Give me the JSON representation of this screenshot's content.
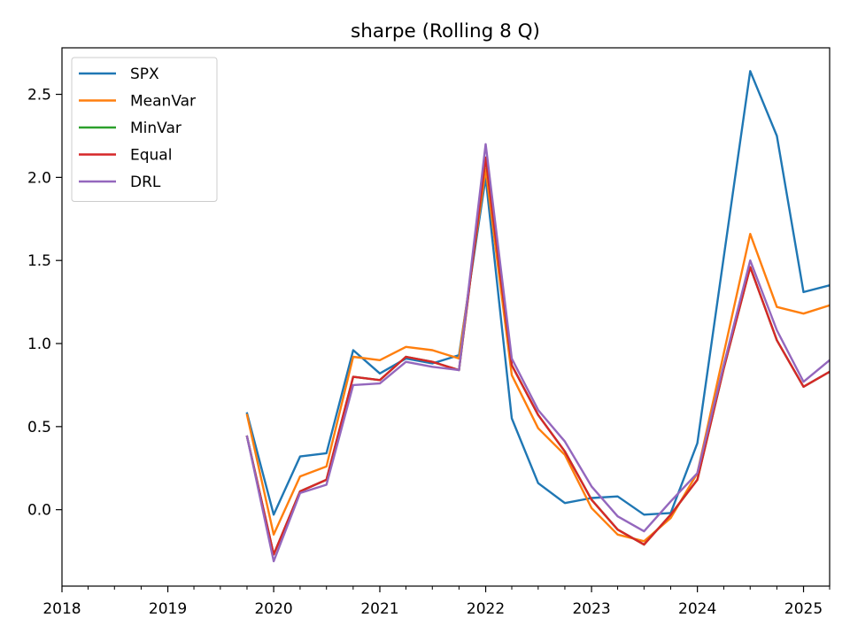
{
  "chart_data": {
    "type": "line",
    "title": "sharpe (Rolling 8 Q)",
    "xlabel": "",
    "ylabel": "",
    "x_range": [
      "2018-01-01",
      "2025-04-01"
    ],
    "ylim": [
      -0.46,
      2.78
    ],
    "x_ticks": [
      {
        "date": "2018-01-01",
        "label": "2018"
      },
      {
        "date": "2019-01-01",
        "label": "2019"
      },
      {
        "date": "2020-01-01",
        "label": "2020"
      },
      {
        "date": "2021-01-01",
        "label": "2021"
      },
      {
        "date": "2022-01-01",
        "label": "2022"
      },
      {
        "date": "2023-01-01",
        "label": "2023"
      },
      {
        "date": "2024-01-01",
        "label": "2024"
      },
      {
        "date": "2025-01-01",
        "label": "2025"
      }
    ],
    "y_ticks": [
      {
        "value": 0.0,
        "label": "0.0"
      },
      {
        "value": 0.5,
        "label": "0.5"
      },
      {
        "value": 1.0,
        "label": "1.0"
      },
      {
        "value": 1.5,
        "label": "1.5"
      },
      {
        "value": 2.0,
        "label": "2.0"
      },
      {
        "value": 2.5,
        "label": "2.5"
      }
    ],
    "grid": false,
    "legend_position": "top-left",
    "x": [
      "2019-10-01",
      "2020-01-01",
      "2020-04-01",
      "2020-07-01",
      "2020-10-01",
      "2021-01-01",
      "2021-04-01",
      "2021-07-01",
      "2021-10-01",
      "2022-01-01",
      "2022-04-01",
      "2022-07-01",
      "2022-10-01",
      "2023-01-01",
      "2023-04-01",
      "2023-07-01",
      "2023-10-01",
      "2024-01-01",
      "2024-04-01",
      "2024-07-01",
      "2024-10-01",
      "2025-01-01",
      "2025-04-01"
    ],
    "series": [
      {
        "name": "SPX",
        "color": "#1f77b4",
        "values": [
          0.58,
          -0.03,
          0.32,
          0.34,
          0.96,
          0.82,
          0.91,
          0.88,
          0.93,
          2.0,
          0.55,
          0.16,
          0.04,
          0.07,
          0.08,
          -0.03,
          -0.02,
          0.4,
          1.52,
          2.64,
          2.25,
          1.31,
          1.35
        ]
      },
      {
        "name": "MeanVar",
        "color": "#ff7f0e",
        "values": [
          0.57,
          -0.15,
          0.2,
          0.26,
          0.92,
          0.9,
          0.98,
          0.96,
          0.91,
          2.05,
          0.81,
          0.49,
          0.33,
          0.01,
          -0.15,
          -0.19,
          -0.05,
          0.22,
          0.94,
          1.66,
          1.22,
          1.18,
          1.23
        ]
      },
      {
        "name": "MinVar",
        "color": "#2ca02c",
        "values": [
          0.44,
          -0.27,
          0.11,
          0.18,
          0.8,
          0.78,
          0.92,
          0.89,
          0.84,
          2.12,
          0.87,
          0.57,
          0.35,
          0.06,
          -0.12,
          -0.21,
          -0.03,
          0.18,
          0.85,
          1.46,
          1.02,
          0.74,
          0.83
        ]
      },
      {
        "name": "Equal",
        "color": "#d62728",
        "values": [
          0.44,
          -0.27,
          0.11,
          0.18,
          0.8,
          0.78,
          0.92,
          0.89,
          0.84,
          2.12,
          0.87,
          0.57,
          0.35,
          0.06,
          -0.12,
          -0.21,
          -0.03,
          0.18,
          0.85,
          1.46,
          1.02,
          0.74,
          0.83
        ]
      },
      {
        "name": "DRL",
        "color": "#9467bd",
        "values": [
          0.44,
          -0.31,
          0.1,
          0.15,
          0.75,
          0.76,
          0.89,
          0.86,
          0.84,
          2.2,
          0.91,
          0.6,
          0.41,
          0.14,
          -0.04,
          -0.13,
          0.05,
          0.22,
          0.87,
          1.5,
          1.08,
          0.77,
          0.9
        ]
      }
    ]
  }
}
